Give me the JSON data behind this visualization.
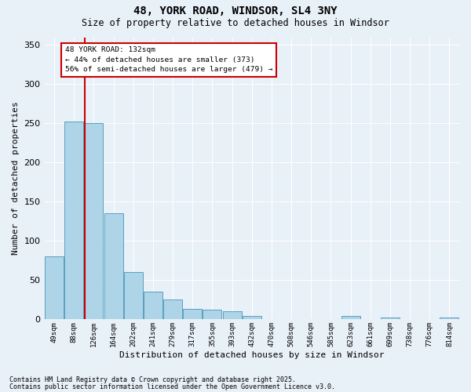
{
  "title1": "48, YORK ROAD, WINDSOR, SL4 3NY",
  "title2": "Size of property relative to detached houses in Windsor",
  "xlabel": "Distribution of detached houses by size in Windsor",
  "ylabel": "Number of detached properties",
  "categories": [
    "49sqm",
    "88sqm",
    "126sqm",
    "164sqm",
    "202sqm",
    "241sqm",
    "279sqm",
    "317sqm",
    "355sqm",
    "393sqm",
    "432sqm",
    "470sqm",
    "508sqm",
    "546sqm",
    "585sqm",
    "623sqm",
    "661sqm",
    "699sqm",
    "738sqm",
    "776sqm",
    "814sqm"
  ],
  "values": [
    80,
    252,
    250,
    135,
    60,
    35,
    25,
    13,
    12,
    10,
    4,
    0,
    0,
    0,
    0,
    4,
    0,
    2,
    0,
    0,
    2
  ],
  "bar_color": "#aed4e8",
  "bar_edge_color": "#5a9fc0",
  "highlight_line_color": "#cc0000",
  "annotation_text": "48 YORK ROAD: 132sqm\n← 44% of detached houses are smaller (373)\n56% of semi-detached houses are larger (479) →",
  "annotation_box_color": "#ffffff",
  "annotation_box_edge": "#cc0000",
  "ylim": [
    0,
    360
  ],
  "yticks": [
    0,
    50,
    100,
    150,
    200,
    250,
    300,
    350
  ],
  "bg_color": "#e8f0f8",
  "grid_color": "#ffffff",
  "footnote1": "Contains HM Land Registry data © Crown copyright and database right 2025.",
  "footnote2": "Contains public sector information licensed under the Open Government Licence v3.0."
}
